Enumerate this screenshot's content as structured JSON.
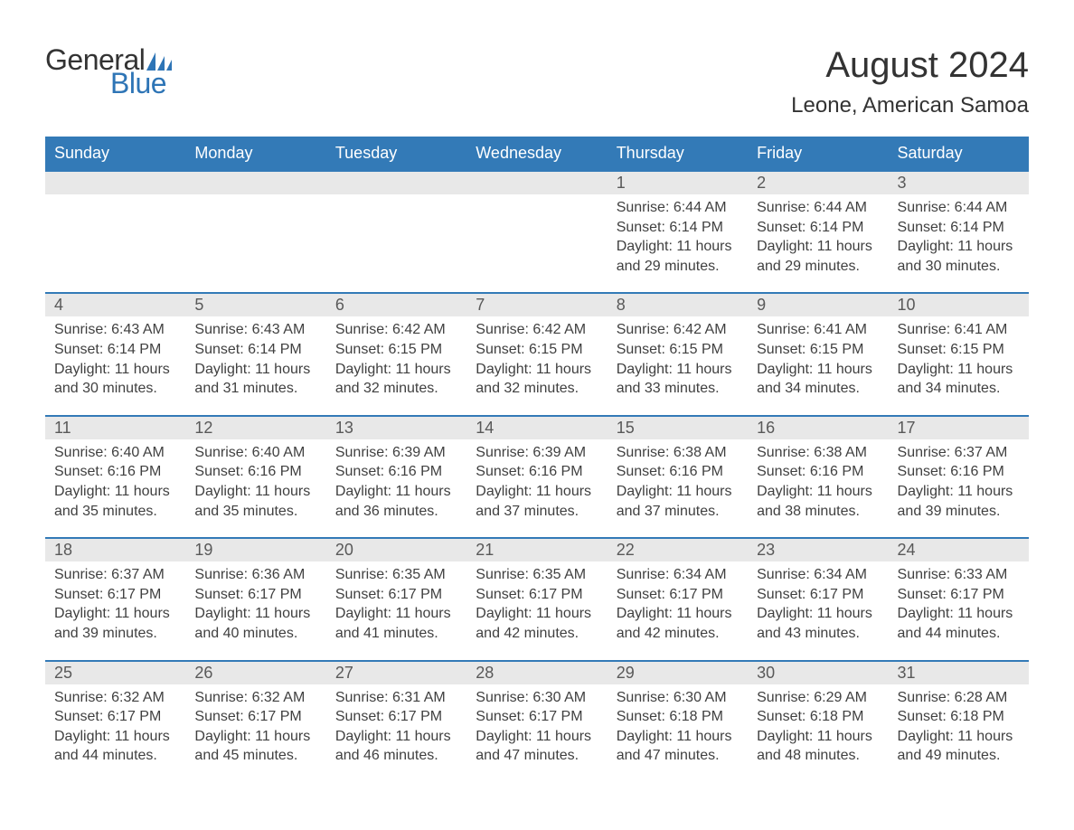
{
  "logo": {
    "general": "General",
    "blue": "Blue"
  },
  "title": {
    "monthYear": "August 2024",
    "location": "Leone, American Samoa"
  },
  "colors": {
    "headerBg": "#337ab7",
    "headerText": "#ffffff",
    "dayNumBg": "#e8e8e8",
    "dayNumText": "#595959",
    "bodyText": "#404040",
    "accent": "#2e75b6",
    "rowBorder": "#337ab7"
  },
  "weekdays": [
    "Sunday",
    "Monday",
    "Tuesday",
    "Wednesday",
    "Thursday",
    "Friday",
    "Saturday"
  ],
  "weeks": [
    [
      null,
      null,
      null,
      null,
      {
        "n": "1",
        "sr": "6:44 AM",
        "ss": "6:14 PM",
        "dh": "11",
        "dm": "29"
      },
      {
        "n": "2",
        "sr": "6:44 AM",
        "ss": "6:14 PM",
        "dh": "11",
        "dm": "29"
      },
      {
        "n": "3",
        "sr": "6:44 AM",
        "ss": "6:14 PM",
        "dh": "11",
        "dm": "30"
      }
    ],
    [
      {
        "n": "4",
        "sr": "6:43 AM",
        "ss": "6:14 PM",
        "dh": "11",
        "dm": "30"
      },
      {
        "n": "5",
        "sr": "6:43 AM",
        "ss": "6:14 PM",
        "dh": "11",
        "dm": "31"
      },
      {
        "n": "6",
        "sr": "6:42 AM",
        "ss": "6:15 PM",
        "dh": "11",
        "dm": "32"
      },
      {
        "n": "7",
        "sr": "6:42 AM",
        "ss": "6:15 PM",
        "dh": "11",
        "dm": "32"
      },
      {
        "n": "8",
        "sr": "6:42 AM",
        "ss": "6:15 PM",
        "dh": "11",
        "dm": "33"
      },
      {
        "n": "9",
        "sr": "6:41 AM",
        "ss": "6:15 PM",
        "dh": "11",
        "dm": "34"
      },
      {
        "n": "10",
        "sr": "6:41 AM",
        "ss": "6:15 PM",
        "dh": "11",
        "dm": "34"
      }
    ],
    [
      {
        "n": "11",
        "sr": "6:40 AM",
        "ss": "6:16 PM",
        "dh": "11",
        "dm": "35"
      },
      {
        "n": "12",
        "sr": "6:40 AM",
        "ss": "6:16 PM",
        "dh": "11",
        "dm": "35"
      },
      {
        "n": "13",
        "sr": "6:39 AM",
        "ss": "6:16 PM",
        "dh": "11",
        "dm": "36"
      },
      {
        "n": "14",
        "sr": "6:39 AM",
        "ss": "6:16 PM",
        "dh": "11",
        "dm": "37"
      },
      {
        "n": "15",
        "sr": "6:38 AM",
        "ss": "6:16 PM",
        "dh": "11",
        "dm": "37"
      },
      {
        "n": "16",
        "sr": "6:38 AM",
        "ss": "6:16 PM",
        "dh": "11",
        "dm": "38"
      },
      {
        "n": "17",
        "sr": "6:37 AM",
        "ss": "6:16 PM",
        "dh": "11",
        "dm": "39"
      }
    ],
    [
      {
        "n": "18",
        "sr": "6:37 AM",
        "ss": "6:17 PM",
        "dh": "11",
        "dm": "39"
      },
      {
        "n": "19",
        "sr": "6:36 AM",
        "ss": "6:17 PM",
        "dh": "11",
        "dm": "40"
      },
      {
        "n": "20",
        "sr": "6:35 AM",
        "ss": "6:17 PM",
        "dh": "11",
        "dm": "41"
      },
      {
        "n": "21",
        "sr": "6:35 AM",
        "ss": "6:17 PM",
        "dh": "11",
        "dm": "42"
      },
      {
        "n": "22",
        "sr": "6:34 AM",
        "ss": "6:17 PM",
        "dh": "11",
        "dm": "42"
      },
      {
        "n": "23",
        "sr": "6:34 AM",
        "ss": "6:17 PM",
        "dh": "11",
        "dm": "43"
      },
      {
        "n": "24",
        "sr": "6:33 AM",
        "ss": "6:17 PM",
        "dh": "11",
        "dm": "44"
      }
    ],
    [
      {
        "n": "25",
        "sr": "6:32 AM",
        "ss": "6:17 PM",
        "dh": "11",
        "dm": "44"
      },
      {
        "n": "26",
        "sr": "6:32 AM",
        "ss": "6:17 PM",
        "dh": "11",
        "dm": "45"
      },
      {
        "n": "27",
        "sr": "6:31 AM",
        "ss": "6:17 PM",
        "dh": "11",
        "dm": "46"
      },
      {
        "n": "28",
        "sr": "6:30 AM",
        "ss": "6:17 PM",
        "dh": "11",
        "dm": "47"
      },
      {
        "n": "29",
        "sr": "6:30 AM",
        "ss": "6:18 PM",
        "dh": "11",
        "dm": "47"
      },
      {
        "n": "30",
        "sr": "6:29 AM",
        "ss": "6:18 PM",
        "dh": "11",
        "dm": "48"
      },
      {
        "n": "31",
        "sr": "6:28 AM",
        "ss": "6:18 PM",
        "dh": "11",
        "dm": "49"
      }
    ]
  ],
  "labels": {
    "sunrise": "Sunrise: ",
    "sunset": "Sunset: ",
    "daylightPrefix": "Daylight: ",
    "hoursWord": " hours",
    "andWord": "and ",
    "minutesWord": " minutes."
  }
}
